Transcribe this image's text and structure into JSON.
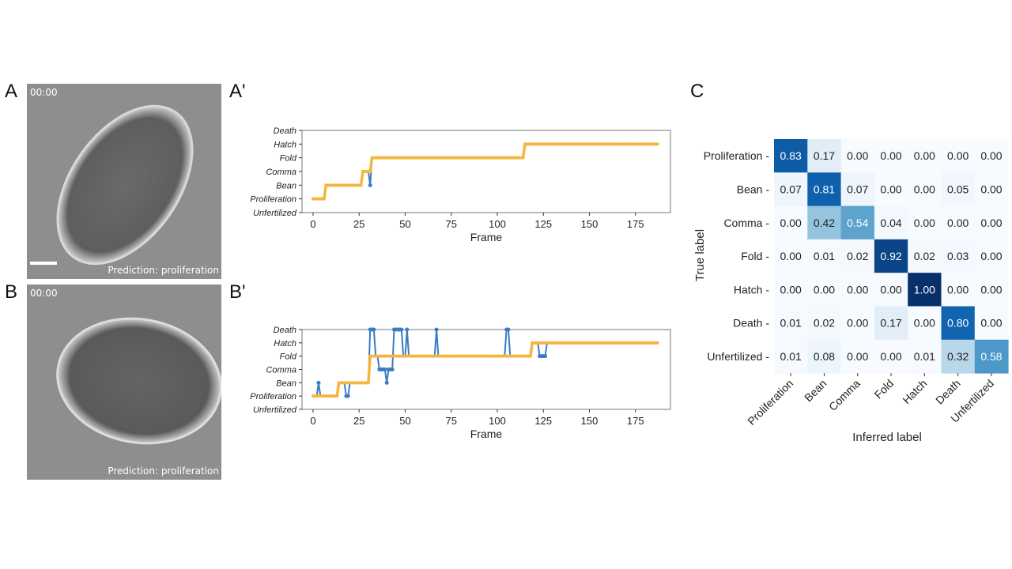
{
  "panels": {
    "A": {
      "label": "A",
      "timestamp": "00:00",
      "prediction": "Prediction: proliferation"
    },
    "B": {
      "label": "B",
      "timestamp": "00:00",
      "prediction": "Prediction: proliferation"
    },
    "A2": {
      "label": "A'"
    },
    "B2": {
      "label": "B'"
    },
    "C": {
      "label": "C"
    }
  },
  "colors": {
    "smoothed": "#f4b63f",
    "raw": "#3a7cc4"
  },
  "chart_data": [
    {
      "type": "line",
      "id": "A'",
      "xlabel": "Frame",
      "xlim": [
        -6,
        194
      ],
      "xticks": [
        0,
        25,
        50,
        75,
        100,
        125,
        150,
        175
      ],
      "ylevels": [
        "Unfertilized",
        "Proliferation",
        "Bean",
        "Comma",
        "Fold",
        "Hatch",
        "Death"
      ],
      "n_frames": 188,
      "smoothed_steps": [
        [
          0,
          6,
          1
        ],
        [
          7,
          26,
          2
        ],
        [
          27,
          31,
          3
        ],
        [
          32,
          114,
          4
        ],
        [
          115,
          187,
          5
        ]
      ],
      "raw_overrides": {
        "31": 2
      }
    },
    {
      "type": "line",
      "id": "B'",
      "xlabel": "Frame",
      "xlim": [
        -6,
        194
      ],
      "xticks": [
        0,
        25,
        50,
        75,
        100,
        125,
        150,
        175
      ],
      "ylevels": [
        "Unfertilized",
        "Proliferation",
        "Bean",
        "Comma",
        "Fold",
        "Hatch",
        "Death"
      ],
      "n_frames": 188,
      "smoothed_steps": [
        [
          0,
          13,
          1
        ],
        [
          14,
          30,
          2
        ],
        [
          31,
          118,
          4
        ],
        [
          119,
          187,
          5
        ]
      ],
      "raw_overrides": {
        "3": 2,
        "18": 1,
        "19": 1,
        "31": 6,
        "32": 6,
        "33": 6,
        "36": 3,
        "37": 3,
        "38": 3,
        "39": 3,
        "40": 2,
        "41": 3,
        "42": 3,
        "43": 3,
        "44": 6,
        "45": 6,
        "46": 6,
        "47": 6,
        "48": 6,
        "51": 6,
        "67": 6,
        "105": 6,
        "106": 6,
        "123": 4,
        "124": 4,
        "125": 4,
        "126": 4
      }
    },
    {
      "type": "heatmap",
      "id": "C",
      "xlabel": "Inferred label",
      "ylabel": "True label",
      "labels": [
        "Proliferation",
        "Bean",
        "Comma",
        "Fold",
        "Hatch",
        "Death",
        "Unfertilized"
      ],
      "values": [
        [
          "0.83",
          "0.17",
          "0.00",
          "0.00",
          "0.00",
          "0.00",
          "0.00"
        ],
        [
          "0.07",
          "0.81",
          "0.07",
          "0.00",
          "0.00",
          "0.05",
          "0.00"
        ],
        [
          "0.00",
          "0.42",
          "0.54",
          "0.04",
          "0.00",
          "0.00",
          "0.00"
        ],
        [
          "0.00",
          "0.01",
          "0.02",
          "0.92",
          "0.02",
          "0.03",
          "0.00"
        ],
        [
          "0.00",
          "0.00",
          "0.00",
          "0.00",
          "1.00",
          "0.00",
          "0.00"
        ],
        [
          "0.01",
          "0.02",
          "0.00",
          "0.17",
          "0.00",
          "0.80",
          "0.00"
        ],
        [
          "0.01",
          "0.08",
          "0.00",
          "0.00",
          "0.01",
          "0.32",
          "0.58"
        ]
      ]
    }
  ]
}
